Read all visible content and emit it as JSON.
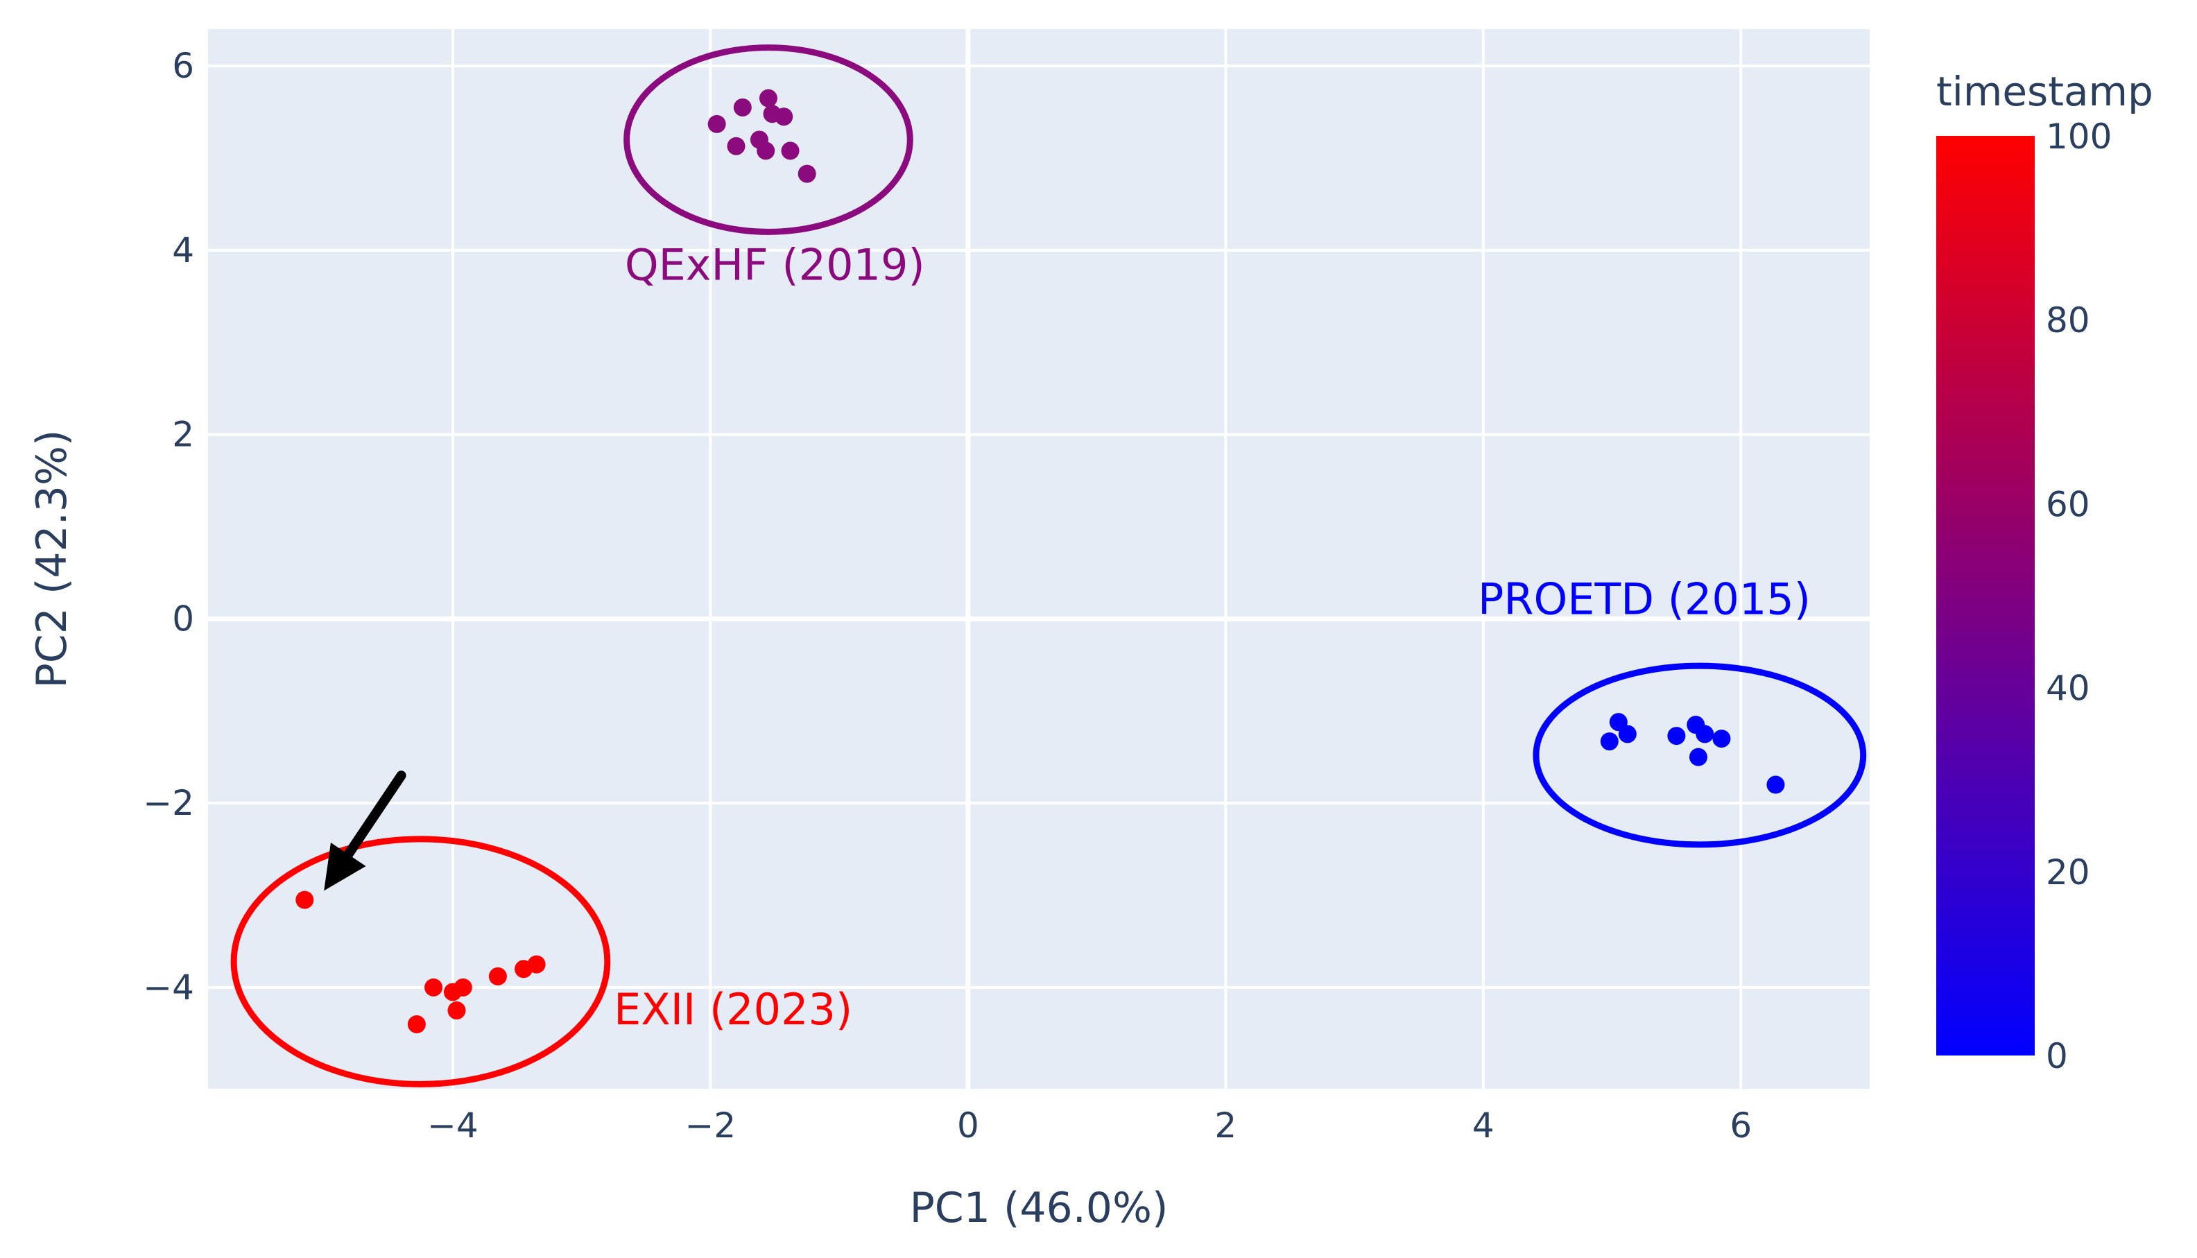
{
  "chart_data": {
    "type": "scatter",
    "xlabel": "PC1 (46.0%)",
    "ylabel": "PC2 (42.3%)",
    "xlim": [
      -5.9,
      7.0
    ],
    "ylim": [
      -5.1,
      6.4
    ],
    "xticks": [
      -4,
      -2,
      0,
      2,
      4,
      6
    ],
    "yticks": [
      -4,
      -2,
      0,
      2,
      4,
      6
    ],
    "xtick_labels": [
      "−4",
      "−2",
      "0",
      "2",
      "4",
      "6"
    ],
    "ytick_labels": [
      "−4",
      "−2",
      "0",
      "2",
      "4",
      "6"
    ],
    "grid": true,
    "colorbar": {
      "title": "timestamp",
      "min": 0,
      "max": 100,
      "ticks": [
        0,
        20,
        40,
        60,
        80,
        100
      ],
      "tick_labels": [
        "0",
        "20",
        "40",
        "60",
        "80",
        "100"
      ],
      "colors": [
        "#0000ff",
        "#ff0000"
      ]
    },
    "series": [
      {
        "name": "QExHF (2019)",
        "timestamp": 50,
        "color": "#8b0a7e",
        "points": [
          {
            "x": -1.95,
            "y": 5.37
          },
          {
            "x": -1.75,
            "y": 5.55
          },
          {
            "x": -1.8,
            "y": 5.13
          },
          {
            "x": -1.55,
            "y": 5.65
          },
          {
            "x": -1.52,
            "y": 5.48
          },
          {
            "x": -1.43,
            "y": 5.45
          },
          {
            "x": -1.62,
            "y": 5.2
          },
          {
            "x": -1.57,
            "y": 5.08
          },
          {
            "x": -1.38,
            "y": 5.08
          },
          {
            "x": -1.25,
            "y": 4.83
          }
        ],
        "ellipse": {
          "cx": -1.55,
          "cy": 5.2,
          "rx": 1.1,
          "ry": 1.0
        }
      },
      {
        "name": "PROETD (2015)",
        "timestamp": 0,
        "color": "#0000ff",
        "points": [
          {
            "x": 4.98,
            "y": -1.33
          },
          {
            "x": 5.05,
            "y": -1.12
          },
          {
            "x": 5.12,
            "y": -1.25
          },
          {
            "x": 5.5,
            "y": -1.27
          },
          {
            "x": 5.65,
            "y": -1.15
          },
          {
            "x": 5.72,
            "y": -1.25
          },
          {
            "x": 5.85,
            "y": -1.3
          },
          {
            "x": 5.67,
            "y": -1.5
          },
          {
            "x": 6.27,
            "y": -1.8
          }
        ],
        "ellipse": {
          "cx": 5.68,
          "cy": -1.48,
          "rx": 1.27,
          "ry": 0.97
        }
      },
      {
        "name": "EXII (2023)",
        "timestamp": 100,
        "color": "#ff0000",
        "points": [
          {
            "x": -5.15,
            "y": -3.05
          },
          {
            "x": -4.28,
            "y": -4.4
          },
          {
            "x": -4.15,
            "y": -4.0
          },
          {
            "x": -4.0,
            "y": -4.05
          },
          {
            "x": -3.92,
            "y": -4.0
          },
          {
            "x": -3.97,
            "y": -4.25
          },
          {
            "x": -3.65,
            "y": -3.88
          },
          {
            "x": -3.45,
            "y": -3.8
          },
          {
            "x": -3.35,
            "y": -3.75
          }
        ],
        "ellipse": {
          "cx": -4.25,
          "cy": -3.72,
          "rx": 1.45,
          "ry": 1.33
        }
      }
    ],
    "annotations": [
      {
        "type": "arrow",
        "text": "",
        "from": {
          "x": -4.4,
          "y": -1.7
        },
        "to": {
          "x": -5.0,
          "y": -2.95
        }
      }
    ]
  }
}
